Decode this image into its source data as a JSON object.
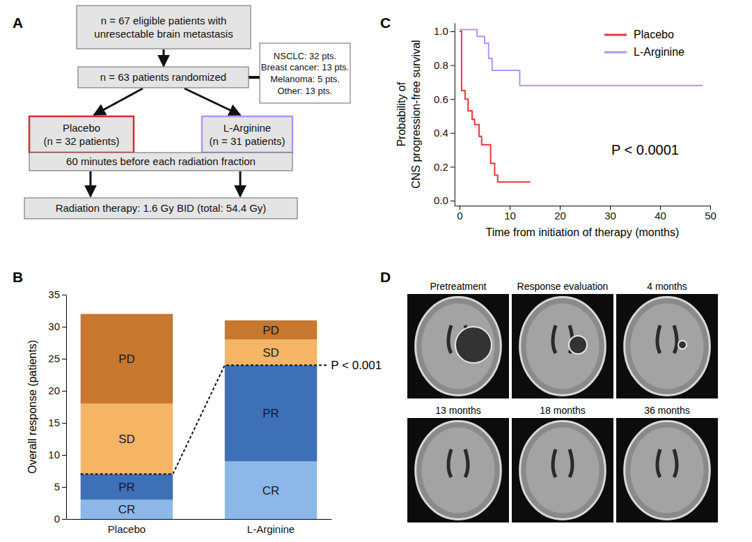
{
  "panel_labels": [
    "A",
    "B",
    "C",
    "D"
  ],
  "diagram": {
    "nodes": [
      {
        "lines": [
          "n = 67 eligible patients with",
          "unresectable brain metastasis"
        ]
      },
      {
        "lines": [
          "n = 63 patients randomized"
        ]
      },
      {
        "lines": [
          "NSCLC: 32 pts.",
          "Breast cancer: 13 pts.",
          "Melanoma: 5 pts.",
          "Other: 13 pts."
        ]
      },
      {
        "lines": [
          "Placebo",
          "(n = 32 patients)"
        ]
      },
      {
        "lines": [
          "L-Arginine",
          "(n = 31 patients)"
        ]
      },
      {
        "lines": [
          "60 minutes before each radiation fraction"
        ]
      },
      {
        "lines": [
          "Radiation therapy: 1.6 Gy BID (total: 54.4 Gy)"
        ]
      }
    ]
  },
  "chart_data": [
    {
      "type": "bar",
      "stacked": true,
      "ylabel": "Overall response (patients)",
      "categories": [
        "Placebo",
        "L-Arginine"
      ],
      "series": [
        {
          "name": "CR",
          "color": "#8db7e8",
          "values": [
            3,
            9
          ]
        },
        {
          "name": "PR",
          "color": "#3d70b6",
          "values": [
            4,
            15
          ]
        },
        {
          "name": "SD",
          "color": "#f6b565",
          "values": [
            11,
            4
          ]
        },
        {
          "name": "PD",
          "color": "#c8772f",
          "values": [
            14,
            3
          ]
        }
      ],
      "ylim": [
        0,
        35
      ],
      "yticks": [
        0,
        5,
        10,
        15,
        20,
        25,
        30,
        35
      ],
      "annotations": [
        "P < 0.001"
      ]
    },
    {
      "type": "line",
      "line_style": "step",
      "xlabel": "Time from initiation of therapy (months)",
      "ylabel": [
        "Probability of",
        "CNS progression-free survival"
      ],
      "xlim": [
        -1,
        50
      ],
      "xticks": [
        0,
        10,
        20,
        30,
        40,
        50
      ],
      "ylim": [
        -0.03,
        1.05
      ],
      "yticks": [
        {
          "value": 0,
          "label": "0.0"
        },
        0.2,
        0.4,
        0.6,
        0.8,
        {
          "value": 1,
          "label": "1.0"
        }
      ],
      "legend": "upper right",
      "series": [
        {
          "name": "Placebo",
          "color": "#e8373a",
          "x": [
            0,
            0.4,
            1.1,
            1.7,
            2.5,
            3.0,
            3.9,
            4.4,
            6.2,
            7.0,
            7.6,
            14.1
          ],
          "values": [
            1.0,
            0.65,
            0.6,
            0.53,
            0.48,
            0.45,
            0.38,
            0.33,
            0.22,
            0.15,
            0.11,
            0.11
          ]
        },
        {
          "name": "L-Arginine",
          "color": "#b592f2",
          "x": [
            0,
            3.5,
            5,
            5.8,
            6.5,
            12,
            48.5
          ],
          "values": [
            1.01,
            0.97,
            0.93,
            0.84,
            0.77,
            0.68,
            0.68
          ]
        }
      ],
      "annotations": [
        "P < 0.0001"
      ]
    }
  ],
  "images": {
    "titles": [
      "Pretreatment",
      "Response evaluation",
      "4 months",
      "13 months",
      "18 months",
      "36 months"
    ]
  }
}
